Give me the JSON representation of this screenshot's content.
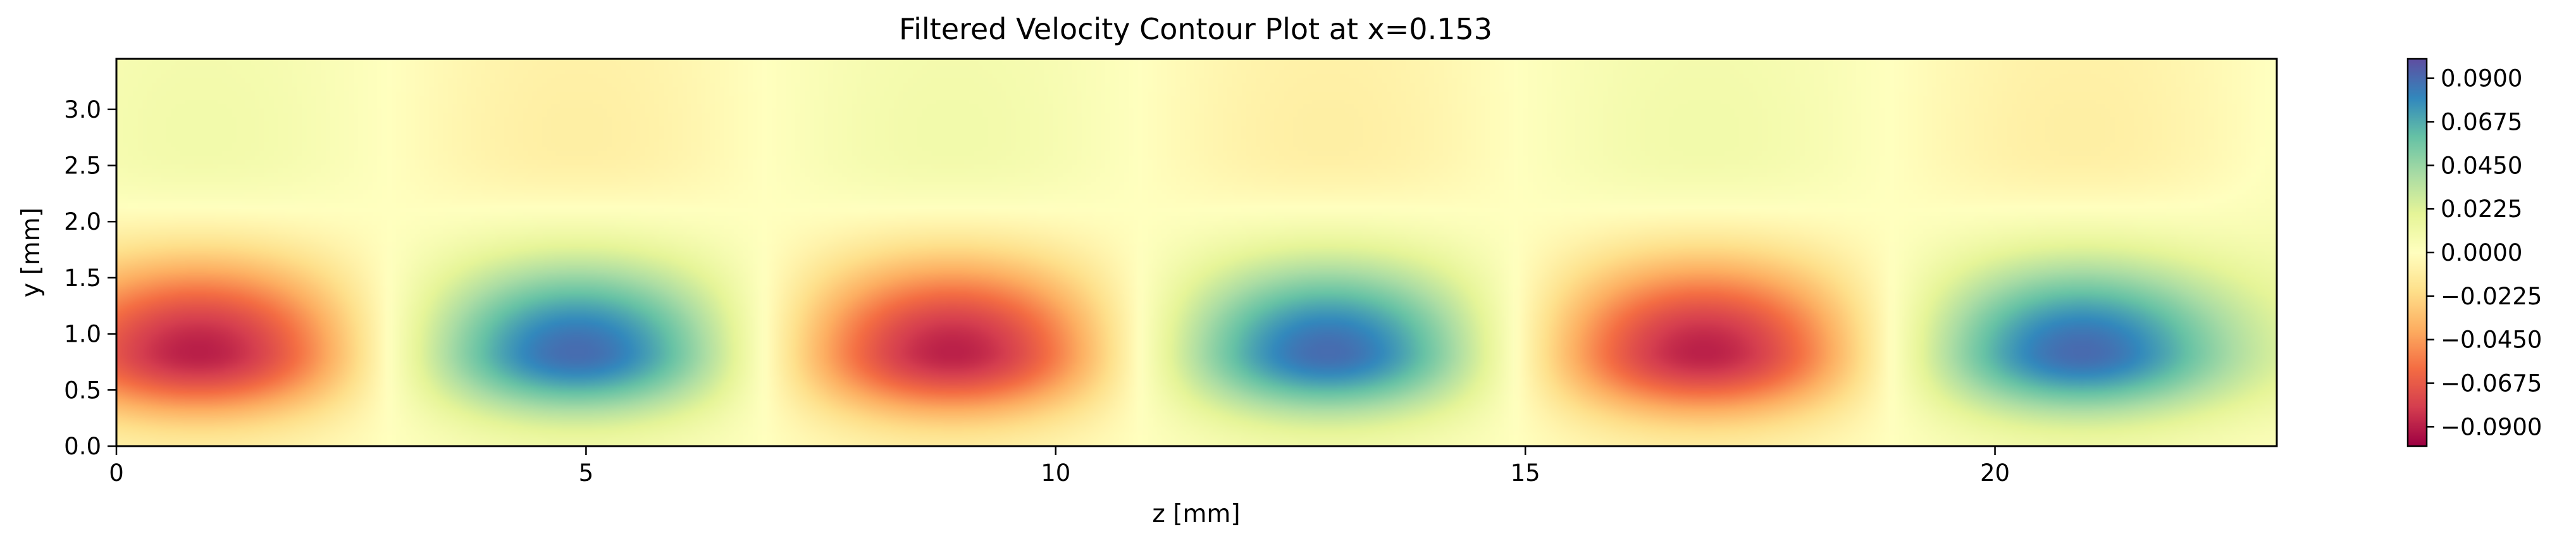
{
  "chart_data": {
    "type": "heatmap",
    "title": "Filtered Velocity Contour Plot at x=0.153",
    "xlabel": "z [mm]",
    "ylabel": "y [mm]",
    "xlim": [
      0,
      23
    ],
    "ylim": [
      0,
      3.45
    ],
    "xticks": [
      0,
      5,
      10,
      15,
      20
    ],
    "xtick_labels": [
      "0",
      "5",
      "10",
      "15",
      "20"
    ],
    "yticks": [
      0.0,
      0.5,
      1.0,
      1.5,
      2.0,
      2.5,
      3.0
    ],
    "ytick_labels": [
      "0.0",
      "0.5",
      "1.0",
      "1.5",
      "2.0",
      "2.5",
      "3.0"
    ],
    "colorbar": {
      "colormap": "Spectral",
      "vmin": -0.1,
      "vmax": 0.1,
      "ticks": [
        0.09,
        0.0675,
        0.045,
        0.0225,
        0.0,
        -0.0225,
        -0.045,
        -0.0675,
        -0.09
      ],
      "tick_labels": [
        "0.0900",
        "0.0675",
        "0.0450",
        "0.0225",
        "0.0000",
        "−0.0225",
        "−0.0450",
        "−0.0675",
        "−0.0900"
      ]
    },
    "field_extrema": [
      {
        "z": 0.9,
        "y": 0.85,
        "value": -0.1
      },
      {
        "z": 4.9,
        "y": 0.85,
        "value": 0.1
      },
      {
        "z": 8.9,
        "y": 0.85,
        "value": -0.1
      },
      {
        "z": 12.9,
        "y": 0.85,
        "value": 0.1
      },
      {
        "z": 16.9,
        "y": 0.85,
        "value": -0.1
      },
      {
        "z": 20.9,
        "y": 0.85,
        "value": 0.1
      }
    ],
    "field_description": "Alternating negative (red) and positive (blue) velocity lobes centered near y=0.85 mm with spanwise period of about 8 mm; weak near-zero values above y=2 mm",
    "colors": {
      "strong_negative": "#9e0142",
      "zero": "#ffffbf",
      "strong_positive": "#5e4fa2"
    }
  }
}
